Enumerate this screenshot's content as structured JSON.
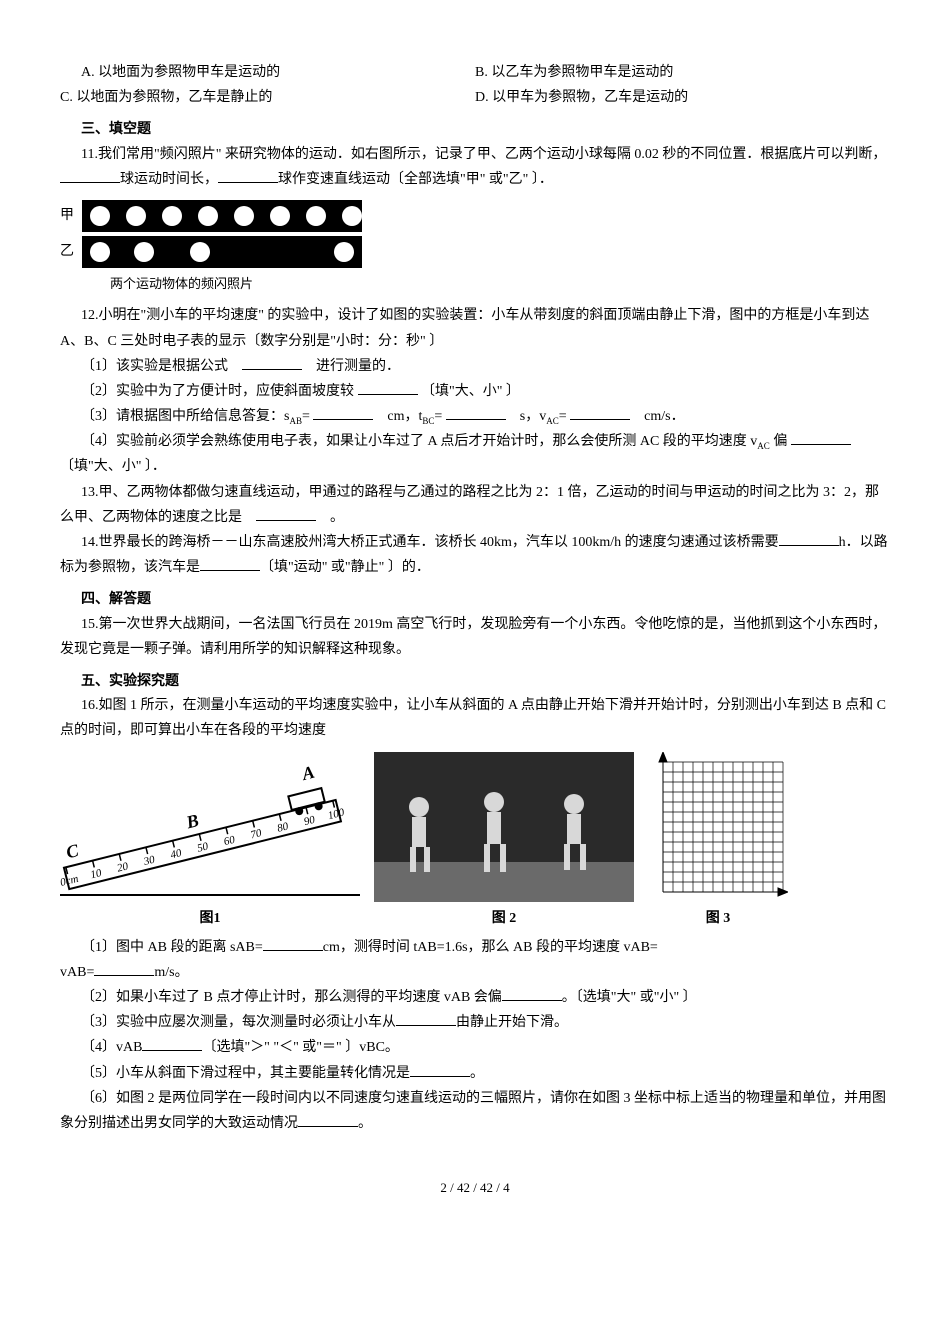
{
  "q10": {
    "optA": "A. 以地面为参照物甲车是运动的",
    "optB": "B. 以乙车为参照物甲车是运动的",
    "optC": "C. 以地面为参照物，乙车是静止的",
    "optD": "D. 以甲车为参照物，乙车是运动的"
  },
  "section3": "三、填空题",
  "q11": {
    "text1": "11.我们常用\"频闪照片\" 来研究物体的运动．如右图所示，记录了甲、乙两个运动小球每隔 0.02 秒的不同位置．根据底片可以判断，",
    "text2": "球运动时间长，",
    "text3": "球作变速直线运动〔全部选填\"甲\" 或\"乙\" 〕．",
    "label_a": "甲",
    "label_b": "乙",
    "caption": "两个运动物体的频闪照片",
    "balls_a": [
      8,
      44,
      80,
      116,
      152,
      188,
      224,
      260
    ],
    "balls_b": [
      8,
      52,
      108,
      252
    ]
  },
  "q12": {
    "intro": "12.小明在\"测小车的平均速度\" 的实验中，设计了如图的实验装置：小车从带刻度的斜面顶端由静止下滑，图中的方框是小车到达 A、B、C 三处时电子表的显示〔数字分别是\"小时：分：秒\" 〕",
    "p1a": "〔1〕该实验是根据公式　",
    "p1b": "　进行测量的．",
    "p2a": "〔2〕实验中为了方便计时，应使斜面坡度较 ",
    "p2b": " 〔填\"大、小\" 〕",
    "p3a": "〔3〕请根据图中所给信息答复：s",
    "p3b": "= ",
    "p3c": "　cm，t",
    "p3d": "= ",
    "p3e": "　s，v",
    "p3f": "= ",
    "p3g": "　cm/s．",
    "p4a": "〔4〕实验前必须学会熟练使用电子表，如果让小车过了 A 点后才开始计时，那么会使所测 AC 段的平均速度 v",
    "p4b": " 偏 ",
    "p4c": " 〔填\"大、小\" 〕．",
    "sub_ab": "AB",
    "sub_bc": "BC",
    "sub_ac": "AC"
  },
  "q13": {
    "t1": "13.甲、乙两物体都做匀速直线运动，甲通过的路程与乙通过的路程之比为 2：1 倍，乙运动的时间与甲运动的时间之比为 3：2，那么甲、乙两物体的速度之比是　",
    "t2": "　。"
  },
  "q14": {
    "t1": "14.世界最长的跨海桥－－山东高速胶州湾大桥正式通车．该桥长 40km，汽车以 100km/h 的速度匀速通过该桥需要",
    "t2": "h．以路标为参照物，该汽车是",
    "t3": "〔填\"运动\" 或\"静止\" 〕的．"
  },
  "section4": "四、解答题",
  "q15": "15.第一次世界大战期间，一名法国飞行员在 2019m 高空飞行时，发现脸旁有一个小东西。令他吃惊的是，当他抓到这个小东西时，发现它竟是一颗子弹。请利用所学的知识解释这种现象。",
  "section5": "五、实验探究题",
  "q16": {
    "intro": "16.如图 1 所示，在测量小车运动的平均速度实验中，让小车从斜面的 A 点由静止开始下滑并开始计时，分别测出小车到达 B 点和 C 点的时间，即可算出小车在各段的平均速度",
    "fig1_label": "图1",
    "fig2_label": "图 2",
    "fig3_label": "图 3",
    "ruler_marks": [
      "0cm",
      "10",
      "20",
      "30",
      "40",
      "50",
      "60",
      "70",
      "80",
      "90",
      "100"
    ],
    "ruler_letters": [
      "A",
      "B",
      "C"
    ],
    "p1a": "〔1〕图中 AB 段的距离 sAB=",
    "p1b": "cm，测得时间 tAB=1.6s，那么 AB 段的平均速度 vAB=",
    "p1c": "m/s。",
    "p2a": "〔2〕如果小车过了 B 点才停止计时，那么测得的平均速度 vAB 会偏",
    "p2b": "。〔选填\"大\" 或\"小\" 〕",
    "p3a": "〔3〕实验中应屡次测量，每次测量时必须让小车从",
    "p3b": "由静止开始下滑。",
    "p4a": "〔4〕vAB",
    "p4b": "〔选填\"＞\" \"＜\" 或\"＝\" 〕vBC。",
    "p5a": "〔5〕小车从斜面下滑过程中，其主要能量转化情况是",
    "p5b": "。",
    "p6a": "〔6〕如图 2 是两位同学在一段时间内以不同速度匀速直线运动的三幅照片，请你在如图 3 坐标中标上适当的物理量和单位，并用图象分别描述出男女同学的大致运动情况",
    "p6b": "。"
  },
  "page_num": "2 / 42 / 42 / 4"
}
